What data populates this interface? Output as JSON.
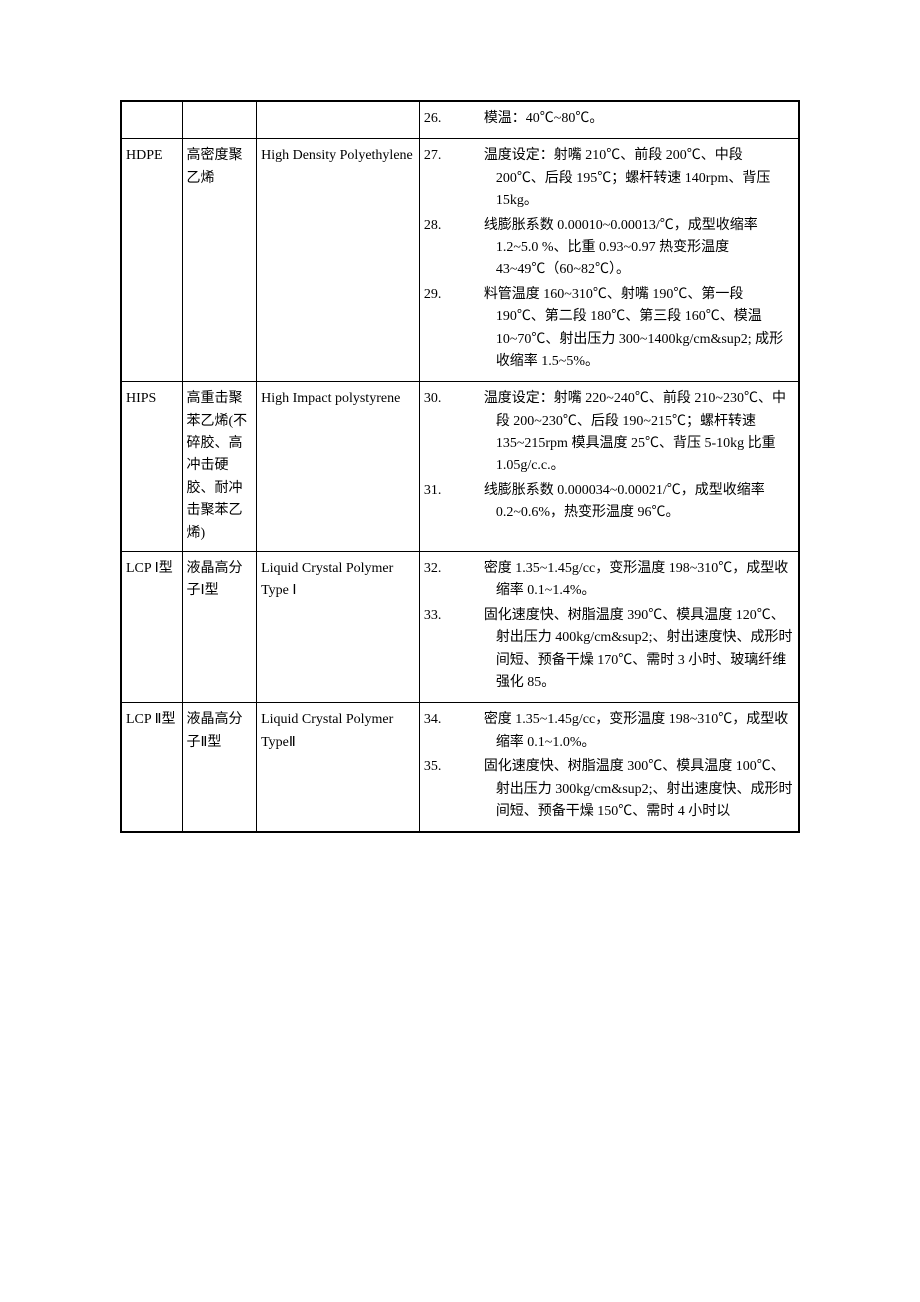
{
  "rows": [
    {
      "col1": "",
      "col2": "",
      "col3": "",
      "items": [
        {
          "n": "26.",
          "t": "模温：40℃~80℃。"
        }
      ]
    },
    {
      "col1": "HDPE",
      "col2": "高密度聚乙烯",
      "col3": "High Density Polyethylene",
      "items": [
        {
          "n": "27.",
          "t": "温度设定：射嘴 210℃、前段 200℃、中段 200℃、后段 195℃；螺杆转速 140rpm、背压 15kg。"
        },
        {
          "n": "28.",
          "t": "线膨胀系数 0.00010~0.00013/℃，成型收缩率 1.2~5.0 %、比重 0.93~0.97 热变形温度 43~49℃（60~82℃）。"
        },
        {
          "n": "29.",
          "t": "料管温度 160~310℃、射嘴 190℃、第一段 190℃、第二段 180℃、第三段 160℃、模温 10~70℃、射出压力 300~1400kg/cm&sup2; 成形收缩率 1.5~5%。"
        }
      ]
    },
    {
      "col1": "HIPS",
      "col2": "高重击聚苯乙烯(不碎胶、高冲击硬胶、耐冲击聚苯乙烯)",
      "col3": "High Impact polystyrene",
      "items": [
        {
          "n": "30.",
          "t": "温度设定：射嘴 220~240℃、前段 210~230℃、中段 200~230℃、后段 190~215℃；螺杆转速 135~215rpm 模具温度 25℃、背压 5-10kg 比重 1.05g/c.c.。"
        },
        {
          "n": "31.",
          "t": "线膨胀系数 0.000034~0.00021/℃，成型收缩率 0.2~0.6%，热变形温度 96℃。"
        }
      ]
    },
    {
      "col1": "LCP Ⅰ型",
      "col2": "液晶高分子Ⅰ型",
      "col3": "Liquid Crystal Polymer Type Ⅰ",
      "items": [
        {
          "n": "32.",
          "t": "密度 1.35~1.45g/cc，变形温度 198~310℃，成型收缩率 0.1~1.4%。"
        },
        {
          "n": "33.",
          "t": "固化速度快、树脂温度 390℃、模具温度 120℃、射出压力 400kg/cm&sup2;、射出速度快、成形时间短、预备干燥 170℃、需时 3 小时、玻璃纤维强化 85。"
        }
      ]
    },
    {
      "col1": "LCP Ⅱ型",
      "col2": "液晶高分子Ⅱ型",
      "col3": "Liquid Crystal Polymer TypeⅡ",
      "items": [
        {
          "n": "34.",
          "t": "密度 1.35~1.45g/cc，变形温度 198~310℃，成型收缩率 0.1~1.0%。"
        },
        {
          "n": "35.",
          "t": "固化速度快、树脂温度 300℃、模具温度 100℃、射出压力 300kg/cm&sup2;、射出速度快、成形时间短、预备干燥 150℃、需时 4 小时以"
        }
      ]
    }
  ]
}
